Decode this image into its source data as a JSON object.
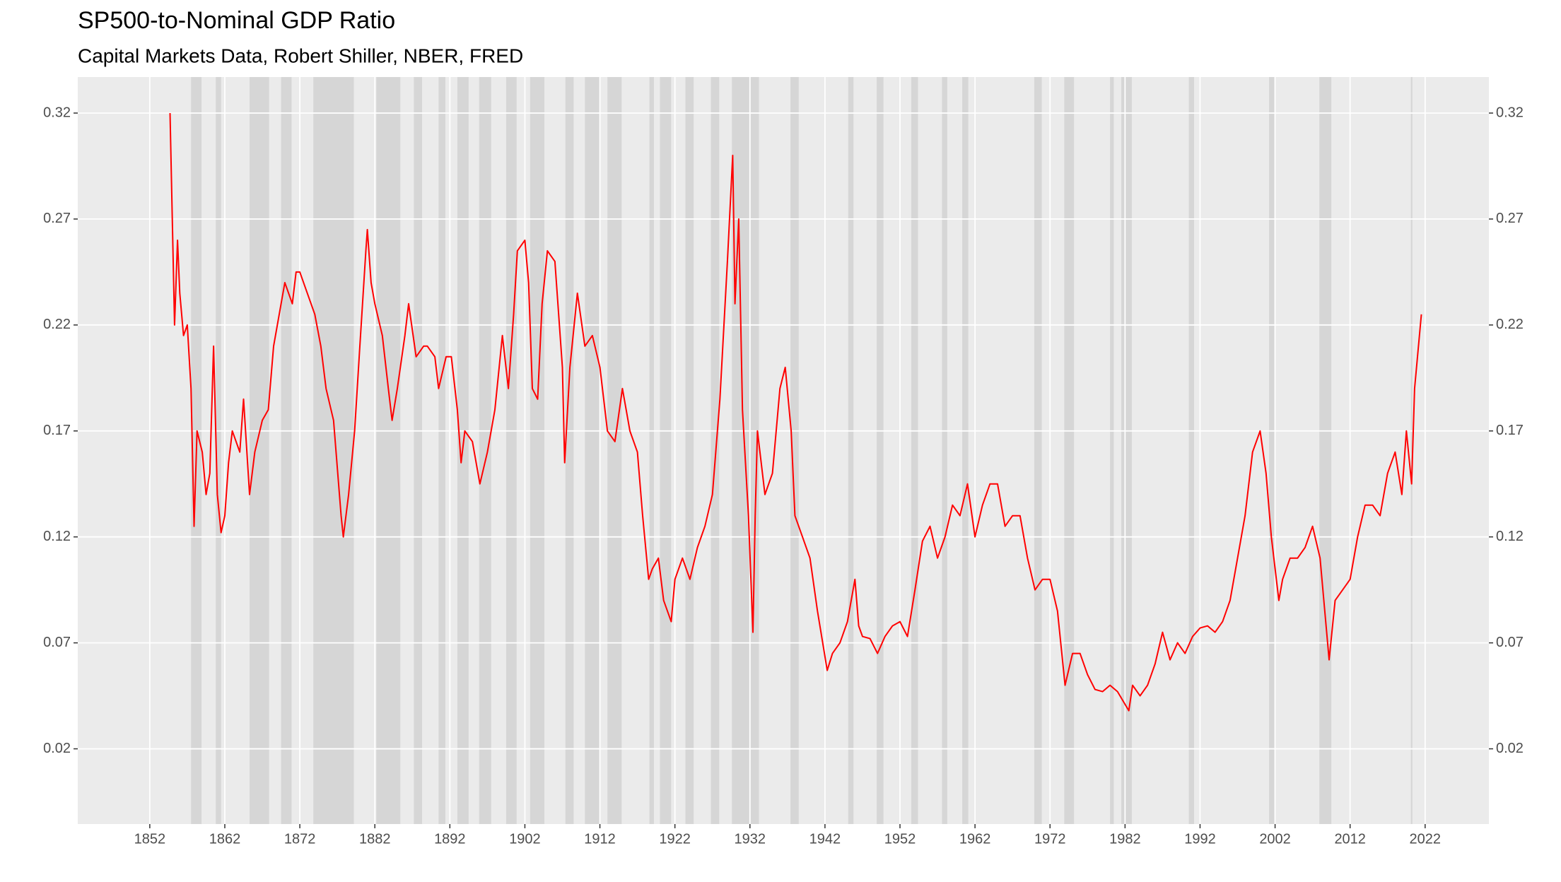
{
  "chart_data": {
    "type": "line",
    "title": "SP500-to-Nominal GDP Ratio",
    "subtitle": "Capital Markets Data, Robert Shiller, NBER, FRED",
    "xlim": [
      1842.4,
      2030.5
    ],
    "xticks": [
      1852,
      1862,
      1872,
      1882,
      1892,
      1902,
      1912,
      1922,
      1932,
      1942,
      1952,
      1962,
      1972,
      1982,
      1992,
      2002,
      2012,
      2022
    ],
    "ylim": [
      -0.0155,
      0.337
    ],
    "yticks": [
      0.02,
      0.07,
      0.12,
      0.17,
      0.22,
      0.27,
      0.32
    ],
    "grid": true,
    "recession_color": "#d6d6d6",
    "recessions": [
      [
        1857.5,
        1858.9
      ],
      [
        1860.8,
        1861.5
      ],
      [
        1865.3,
        1867.9
      ],
      [
        1869.5,
        1870.9
      ],
      [
        1873.8,
        1879.2
      ],
      [
        1882.2,
        1885.4
      ],
      [
        1887.2,
        1888.3
      ],
      [
        1890.5,
        1891.4
      ],
      [
        1893.0,
        1894.5
      ],
      [
        1895.9,
        1897.5
      ],
      [
        1899.5,
        1900.9
      ],
      [
        1902.7,
        1904.6
      ],
      [
        1907.4,
        1908.5
      ],
      [
        1910.0,
        1912.0
      ],
      [
        1913.0,
        1914.9
      ],
      [
        1918.6,
        1919.2
      ],
      [
        1920.0,
        1921.5
      ],
      [
        1923.4,
        1924.5
      ],
      [
        1926.8,
        1927.9
      ],
      [
        1929.6,
        1933.2
      ],
      [
        1937.4,
        1938.5
      ],
      [
        1945.1,
        1945.8
      ],
      [
        1948.9,
        1949.8
      ],
      [
        1953.5,
        1954.4
      ],
      [
        1957.6,
        1958.3
      ],
      [
        1960.3,
        1961.1
      ],
      [
        1969.9,
        1970.9
      ],
      [
        1973.9,
        1975.2
      ],
      [
        1980.0,
        1980.5
      ],
      [
        1981.5,
        1982.9
      ],
      [
        1990.5,
        1991.2
      ],
      [
        2001.2,
        2001.9
      ],
      [
        2007.9,
        2009.5
      ],
      [
        2020.1,
        2020.3
      ]
    ],
    "series": [
      {
        "color": "#ff0000",
        "x": [
          1854.7,
          1855.0,
          1855.3,
          1855.7,
          1856.0,
          1856.5,
          1857.0,
          1857.5,
          1857.9,
          1858.3,
          1859,
          1859.5,
          1860,
          1860.5,
          1861,
          1861.5,
          1862,
          1862.5,
          1863,
          1864,
          1864.5,
          1865.3,
          1866,
          1867,
          1867.8,
          1868.5,
          1869.5,
          1870,
          1871,
          1871.5,
          1872,
          1873,
          1874,
          1874.8,
          1875.5,
          1876.5,
          1877.5,
          1877.8,
          1878.5,
          1879.3,
          1880,
          1880.8,
          1881,
          1881.5,
          1882,
          1883,
          1883.8,
          1884.3,
          1885,
          1886,
          1886.5,
          1887.5,
          1888.5,
          1889,
          1890,
          1890.5,
          1891.5,
          1892.2,
          1893,
          1893.5,
          1894,
          1895,
          1896,
          1897,
          1898,
          1899,
          1899.8,
          1900.5,
          1901,
          1902,
          1902.5,
          1903,
          1903.7,
          1904.3,
          1905,
          1906,
          1907,
          1907.3,
          1908,
          1909,
          1910,
          1911,
          1912,
          1913,
          1914,
          1915,
          1916,
          1917,
          1917.7,
          1918.5,
          1919,
          1919.8,
          1920.5,
          1921.5,
          1922,
          1923,
          1924,
          1925,
          1926,
          1927,
          1928,
          1929,
          1929.7,
          1930,
          1930.5,
          1931,
          1931.8,
          1932.4,
          1932.7,
          1933,
          1934,
          1935,
          1936,
          1936.7,
          1937.5,
          1938,
          1939,
          1940,
          1941,
          1942.3,
          1943,
          1944,
          1945,
          1946,
          1946.5,
          1947,
          1948,
          1949,
          1950,
          1951,
          1952,
          1953,
          1954,
          1955,
          1956,
          1957,
          1958,
          1959,
          1960,
          1961,
          1962,
          1963,
          1964,
          1965,
          1966,
          1967,
          1968,
          1969,
          1970,
          1971,
          1972,
          1973,
          1974,
          1975,
          1976,
          1977,
          1978,
          1979,
          1980,
          1981,
          1982.5,
          1983,
          1984,
          1985,
          1986,
          1987,
          1988,
          1989,
          1990,
          1991,
          1992,
          1993,
          1994,
          1995,
          1996,
          1997,
          1998,
          1999,
          2000,
          2000.8,
          2001.5,
          2002.5,
          2003,
          2004,
          2005,
          2006,
          2007,
          2008,
          2009.2,
          2010,
          2011,
          2012,
          2013,
          2014,
          2015,
          2016,
          2017,
          2018,
          2018.9,
          2019.5,
          2020.2,
          2020.6,
          2021.5
        ],
        "values": [
          0.32,
          0.27,
          0.22,
          0.26,
          0.235,
          0.215,
          0.22,
          0.19,
          0.125,
          0.17,
          0.16,
          0.14,
          0.15,
          0.21,
          0.14,
          0.122,
          0.13,
          0.155,
          0.17,
          0.16,
          0.185,
          0.14,
          0.16,
          0.175,
          0.18,
          0.21,
          0.23,
          0.24,
          0.23,
          0.245,
          0.245,
          0.235,
          0.225,
          0.21,
          0.19,
          0.175,
          0.13,
          0.12,
          0.14,
          0.17,
          0.21,
          0.255,
          0.265,
          0.24,
          0.23,
          0.215,
          0.19,
          0.175,
          0.19,
          0.215,
          0.23,
          0.205,
          0.21,
          0.21,
          0.205,
          0.19,
          0.205,
          0.205,
          0.18,
          0.155,
          0.17,
          0.165,
          0.145,
          0.16,
          0.18,
          0.215,
          0.19,
          0.225,
          0.255,
          0.26,
          0.24,
          0.19,
          0.185,
          0.23,
          0.255,
          0.25,
          0.2,
          0.155,
          0.2,
          0.235,
          0.21,
          0.215,
          0.2,
          0.17,
          0.165,
          0.19,
          0.17,
          0.16,
          0.13,
          0.1,
          0.105,
          0.11,
          0.09,
          0.08,
          0.1,
          0.11,
          0.1,
          0.115,
          0.125,
          0.14,
          0.185,
          0.25,
          0.3,
          0.23,
          0.27,
          0.18,
          0.13,
          0.075,
          0.13,
          0.17,
          0.14,
          0.15,
          0.19,
          0.2,
          0.17,
          0.13,
          0.12,
          0.11,
          0.085,
          0.057,
          0.065,
          0.07,
          0.08,
          0.1,
          0.078,
          0.073,
          0.072,
          0.065,
          0.073,
          0.078,
          0.08,
          0.073,
          0.095,
          0.118,
          0.125,
          0.11,
          0.12,
          0.135,
          0.13,
          0.145,
          0.12,
          0.135,
          0.145,
          0.145,
          0.125,
          0.13,
          0.13,
          0.11,
          0.095,
          0.1,
          0.1,
          0.085,
          0.05,
          0.065,
          0.065,
          0.055,
          0.048,
          0.047,
          0.05,
          0.047,
          0.038,
          0.05,
          0.045,
          0.05,
          0.06,
          0.075,
          0.062,
          0.07,
          0.065,
          0.073,
          0.077,
          0.078,
          0.075,
          0.08,
          0.09,
          0.11,
          0.13,
          0.16,
          0.17,
          0.15,
          0.12,
          0.09,
          0.1,
          0.11,
          0.11,
          0.115,
          0.125,
          0.11,
          0.062,
          0.09,
          0.095,
          0.1,
          0.12,
          0.135,
          0.135,
          0.13,
          0.15,
          0.16,
          0.14,
          0.17,
          0.145,
          0.19,
          0.225
        ]
      }
    ]
  }
}
